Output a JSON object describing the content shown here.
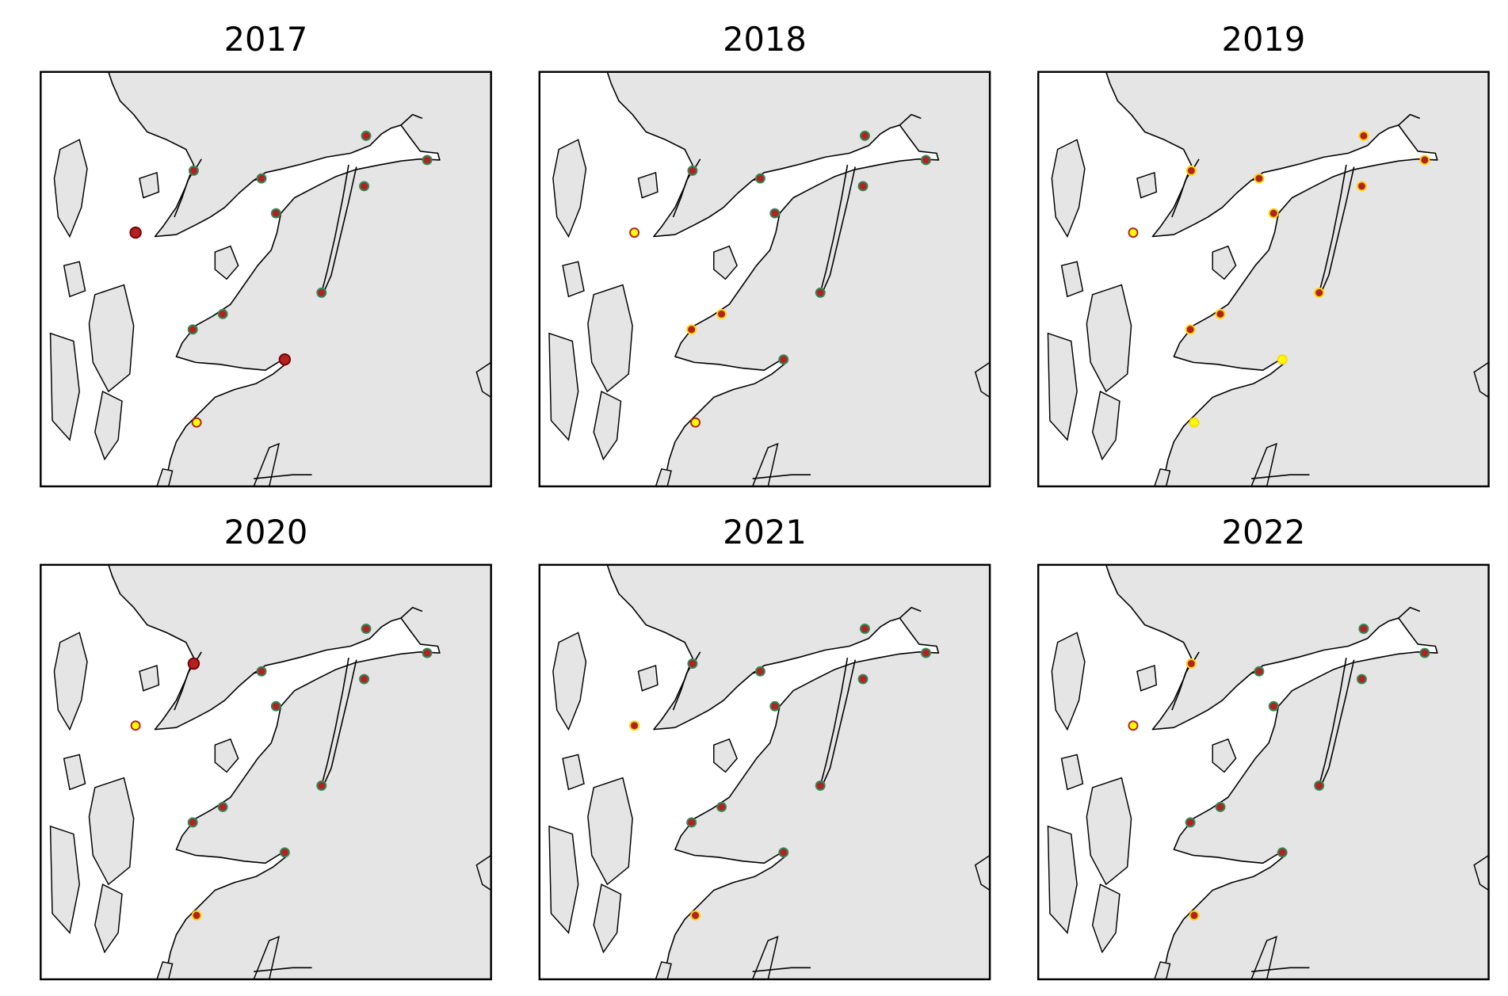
{
  "panels": [
    {
      "title": "2017",
      "markers": [
        {
          "fill": "#b22222",
          "edge": "#2e8b57"
        },
        {
          "fill": "#b22222",
          "edge": "#2e8b57"
        },
        {
          "fill": "#b22222",
          "edge": "#2e8b57"
        },
        {
          "fill": "#b22222",
          "edge": "#2e8b57"
        },
        {
          "fill": "#b22222",
          "edge": "#2e8b57"
        },
        {
          "fill": "#b22222",
          "edge": "#2e8b57"
        },
        {
          "fill": "#b22222",
          "edge": "#7a0000"
        },
        {
          "fill": "#b22222",
          "edge": "#2e8b57"
        },
        {
          "fill": "#b22222",
          "edge": "#2e8b57"
        },
        {
          "fill": "#b22222",
          "edge": "#2e8b57"
        },
        {
          "fill": "#b22222",
          "edge": "#7a0000"
        },
        {
          "fill": "#ffff00",
          "edge": "#b22222"
        }
      ]
    },
    {
      "title": "2018",
      "markers": [
        {
          "fill": "#b22222",
          "edge": "#2e8b57"
        },
        {
          "fill": "#b22222",
          "edge": "#2e8b57"
        },
        {
          "fill": "#b22222",
          "edge": "#2e8b57"
        },
        {
          "fill": "#b22222",
          "edge": "#2e8b57"
        },
        {
          "fill": "#b22222",
          "edge": "#2e8b57"
        },
        {
          "fill": "#b22222",
          "edge": "#2e8b57"
        },
        {
          "fill": "#ffff00",
          "edge": "#b22222"
        },
        {
          "fill": "#b22222",
          "edge": "#2e8b57"
        },
        {
          "fill": "#b22222",
          "edge": "#ffd700"
        },
        {
          "fill": "#b22222",
          "edge": "#ffd700"
        },
        {
          "fill": "#b22222",
          "edge": "#2e8b57"
        },
        {
          "fill": "#ffff00",
          "edge": "#b22222"
        }
      ]
    },
    {
      "title": "2019",
      "markers": [
        {
          "fill": "#b22222",
          "edge": "#ffd700"
        },
        {
          "fill": "#b22222",
          "edge": "#ffd700"
        },
        {
          "fill": "#b22222",
          "edge": "#ffd700"
        },
        {
          "fill": "#b22222",
          "edge": "#ffd700"
        },
        {
          "fill": "#b22222",
          "edge": "#ffd700"
        },
        {
          "fill": "#b22222",
          "edge": "#ffd700"
        },
        {
          "fill": "#ffff00",
          "edge": "#b22222"
        },
        {
          "fill": "#b22222",
          "edge": "#ffd700"
        },
        {
          "fill": "#b22222",
          "edge": "#ffd700"
        },
        {
          "fill": "#b22222",
          "edge": "#ffd700"
        },
        {
          "fill": "#ffff00",
          "edge": "#ffd700"
        },
        {
          "fill": "#ffff00",
          "edge": "#ffd700"
        }
      ]
    },
    {
      "title": "2020",
      "markers": [
        {
          "fill": "#b22222",
          "edge": "#7a0000"
        },
        {
          "fill": "#b22222",
          "edge": "#2e8b57"
        },
        {
          "fill": "#b22222",
          "edge": "#2e8b57"
        },
        {
          "fill": "#b22222",
          "edge": "#2e8b57"
        },
        {
          "fill": "#b22222",
          "edge": "#2e8b57"
        },
        {
          "fill": "#b22222",
          "edge": "#2e8b57"
        },
        {
          "fill": "#ffff00",
          "edge": "#b22222"
        },
        {
          "fill": "#b22222",
          "edge": "#2e8b57"
        },
        {
          "fill": "#b22222",
          "edge": "#2e8b57"
        },
        {
          "fill": "#b22222",
          "edge": "#2e8b57"
        },
        {
          "fill": "#b22222",
          "edge": "#2e8b57"
        },
        {
          "fill": "#b22222",
          "edge": "#ffd700"
        }
      ]
    },
    {
      "title": "2021",
      "markers": [
        {
          "fill": "#b22222",
          "edge": "#2e8b57"
        },
        {
          "fill": "#b22222",
          "edge": "#2e8b57"
        },
        {
          "fill": "#b22222",
          "edge": "#2e8b57"
        },
        {
          "fill": "#b22222",
          "edge": "#2e8b57"
        },
        {
          "fill": "#b22222",
          "edge": "#2e8b57"
        },
        {
          "fill": "#b22222",
          "edge": "#2e8b57"
        },
        {
          "fill": "#b22222",
          "edge": "#ffd700"
        },
        {
          "fill": "#b22222",
          "edge": "#2e8b57"
        },
        {
          "fill": "#b22222",
          "edge": "#2e8b57"
        },
        {
          "fill": "#b22222",
          "edge": "#2e8b57"
        },
        {
          "fill": "#b22222",
          "edge": "#2e8b57"
        },
        {
          "fill": "#b22222",
          "edge": "#ffd700"
        }
      ]
    },
    {
      "title": "2022",
      "markers": [
        {
          "fill": "#b22222",
          "edge": "#ffd700"
        },
        {
          "fill": "#b22222",
          "edge": "#2e8b57"
        },
        {
          "fill": "#b22222",
          "edge": "#2e8b57"
        },
        {
          "fill": "#b22222",
          "edge": "#2e8b57"
        },
        {
          "fill": "#b22222",
          "edge": "#2e8b57"
        },
        {
          "fill": "#b22222",
          "edge": "#2e8b57"
        },
        {
          "fill": "#ffff00",
          "edge": "#b22222"
        },
        {
          "fill": "#b22222",
          "edge": "#2e8b57"
        },
        {
          "fill": "#b22222",
          "edge": "#2e8b57"
        },
        {
          "fill": "#b22222",
          "edge": "#2e8b57"
        },
        {
          "fill": "#b22222",
          "edge": "#2e8b57"
        },
        {
          "fill": "#b22222",
          "edge": "#ffd700"
        }
      ]
    }
  ]
}
